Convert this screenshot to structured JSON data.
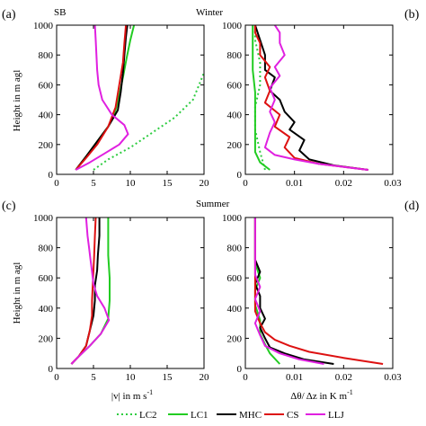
{
  "colors": {
    "LC2": "#2ecc40",
    "LC1": "#22cc22",
    "MHC": "#000000",
    "CS": "#dd1111",
    "LLJ": "#e020e0"
  },
  "labels": {
    "a": "(a)",
    "b": "(b)",
    "c": "(c)",
    "d": "(d)",
    "sb": "SB",
    "winter": "Winter",
    "summer": "Summer",
    "ylabel": "Height in m agl",
    "xlabel_left": "|v|  in  m s",
    "xlabel_left_sup": "-1",
    "xlabel_right": "Δθ/ Δz in K m",
    "xlabel_right_sup": "-1"
  },
  "legend": [
    {
      "name": "LC2",
      "dash": true
    },
    {
      "name": "LC1",
      "dash": false
    },
    {
      "name": "MHC",
      "dash": false
    },
    {
      "name": "CS",
      "dash": false
    },
    {
      "name": "LLJ",
      "dash": false
    }
  ],
  "chart_data": [
    {
      "panel": "a",
      "type": "line",
      "title": "Winter",
      "xlim": [
        0,
        20
      ],
      "ylim": [
        0,
        1000
      ],
      "xticks": [
        0,
        5,
        10,
        15,
        20
      ],
      "yticks": [
        0,
        200,
        400,
        600,
        800,
        1000
      ],
      "ylabel": "Height in m agl",
      "series": [
        {
          "name": "LC2",
          "dash": true,
          "points": [
            [
              5,
              30
            ],
            [
              7,
              100
            ],
            [
              10,
              180
            ],
            [
              13,
              280
            ],
            [
              16,
              380
            ],
            [
              18.5,
              500
            ],
            [
              20,
              680
            ]
          ]
        },
        {
          "name": "LC1",
          "points": [
            [
              2.6,
              30
            ],
            [
              4,
              120
            ],
            [
              5.5,
              220
            ],
            [
              7,
              320
            ],
            [
              8,
              430
            ],
            [
              8.5,
              530
            ],
            [
              9,
              650
            ],
            [
              9.5,
              780
            ],
            [
              10,
              900
            ],
            [
              10.5,
              1000
            ]
          ]
        },
        {
          "name": "MHC",
          "points": [
            [
              2.6,
              30
            ],
            [
              4,
              120
            ],
            [
              5.5,
              220
            ],
            [
              7,
              320
            ],
            [
              8.3,
              430
            ],
            [
              8.7,
              550
            ],
            [
              9,
              680
            ],
            [
              9.2,
              800
            ],
            [
              9.4,
              920
            ],
            [
              9.6,
              1000
            ]
          ]
        },
        {
          "name": "CS",
          "points": [
            [
              2.6,
              30
            ],
            [
              4,
              110
            ],
            [
              5.5,
              200
            ],
            [
              7,
              320
            ],
            [
              8,
              450
            ],
            [
              8.5,
              600
            ],
            [
              9,
              750
            ],
            [
              9.2,
              880
            ],
            [
              9.4,
              1000
            ]
          ]
        },
        {
          "name": "LLJ",
          "points": [
            [
              2.6,
              30
            ],
            [
              4.5,
              80
            ],
            [
              6.5,
              140
            ],
            [
              8.5,
              200
            ],
            [
              9.7,
              270
            ],
            [
              9.2,
              330
            ],
            [
              7.5,
              400
            ],
            [
              6.2,
              500
            ],
            [
              5.7,
              600
            ],
            [
              5.5,
              700
            ],
            [
              5.4,
              800
            ],
            [
              5.3,
              900
            ],
            [
              5.2,
              1000
            ]
          ]
        }
      ]
    },
    {
      "panel": "b",
      "type": "line",
      "xlim": [
        0,
        0.03
      ],
      "ylim": [
        0,
        1000
      ],
      "xticks": [
        0,
        0.01,
        0.02,
        0.03
      ],
      "yticks": [
        0,
        200,
        400,
        600,
        800,
        1000
      ],
      "series": [
        {
          "name": "LC2",
          "dash": true,
          "points": [
            [
              0.004,
              30
            ],
            [
              0.003,
              150
            ],
            [
              0.002,
              300
            ],
            [
              0.002,
              450
            ],
            [
              0.003,
              600
            ],
            [
              0.003,
              750
            ],
            [
              0.002,
              900
            ],
            [
              0.002,
              1000
            ]
          ]
        },
        {
          "name": "LC1",
          "points": [
            [
              0.005,
              30
            ],
            [
              0.003,
              80
            ],
            [
              0.002,
              150
            ],
            [
              0.002,
              250
            ],
            [
              0.002,
              400
            ],
            [
              0.002,
              550
            ],
            [
              0.0015,
              700
            ],
            [
              0.0015,
              850
            ],
            [
              0.0015,
              1000
            ]
          ]
        },
        {
          "name": "MHC",
          "points": [
            [
              0.025,
              30
            ],
            [
              0.018,
              60
            ],
            [
              0.013,
              100
            ],
            [
              0.011,
              160
            ],
            [
              0.012,
              230
            ],
            [
              0.009,
              300
            ],
            [
              0.01,
              350
            ],
            [
              0.008,
              420
            ],
            [
              0.007,
              500
            ],
            [
              0.005,
              560
            ],
            [
              0.006,
              650
            ],
            [
              0.004,
              700
            ],
            [
              0.004,
              800
            ],
            [
              0.003,
              900
            ],
            [
              0.002,
              1000
            ]
          ]
        },
        {
          "name": "CS",
          "points": [
            [
              0.025,
              30
            ],
            [
              0.015,
              70
            ],
            [
              0.01,
              110
            ],
            [
              0.008,
              180
            ],
            [
              0.009,
              250
            ],
            [
              0.006,
              320
            ],
            [
              0.007,
              400
            ],
            [
              0.004,
              480
            ],
            [
              0.005,
              560
            ],
            [
              0.004,
              650
            ],
            [
              0.005,
              720
            ],
            [
              0.003,
              800
            ],
            [
              0.003,
              880
            ],
            [
              0.002,
              950
            ],
            [
              0.002,
              1000
            ]
          ]
        },
        {
          "name": "LLJ",
          "points": [
            [
              0.025,
              30
            ],
            [
              0.02,
              50
            ],
            [
              0.015,
              70
            ],
            [
              0.01,
              100
            ],
            [
              0.006,
              130
            ],
            [
              0.004,
              180
            ],
            [
              0.005,
              280
            ],
            [
              0.006,
              350
            ],
            [
              0.005,
              420
            ],
            [
              0.006,
              500
            ],
            [
              0.005,
              580
            ],
            [
              0.007,
              660
            ],
            [
              0.006,
              720
            ],
            [
              0.008,
              800
            ],
            [
              0.007,
              880
            ],
            [
              0.007,
              950
            ],
            [
              0.006,
              1000
            ]
          ]
        }
      ]
    },
    {
      "panel": "c",
      "type": "line",
      "title": "Summer",
      "xlim": [
        0,
        20
      ],
      "ylim": [
        0,
        1000
      ],
      "xticks": [
        0,
        5,
        10,
        15,
        20
      ],
      "yticks": [
        0,
        200,
        400,
        600,
        800,
        1000
      ],
      "ylabel": "Height in m agl",
      "series": [
        {
          "name": "LC1",
          "points": [
            [
              2,
              30
            ],
            [
              3,
              80
            ],
            [
              4.5,
              150
            ],
            [
              6,
              230
            ],
            [
              7,
              330
            ],
            [
              7.2,
              450
            ],
            [
              7.2,
              600
            ],
            [
              7,
              750
            ],
            [
              7,
              880
            ],
            [
              7,
              1000
            ]
          ]
        },
        {
          "name": "MHC",
          "points": [
            [
              2,
              30
            ],
            [
              3,
              80
            ],
            [
              4,
              150
            ],
            [
              4.5,
              250
            ],
            [
              5,
              350
            ],
            [
              5.2,
              450
            ],
            [
              5.2,
              550
            ],
            [
              5.5,
              650
            ],
            [
              5.6,
              750
            ],
            [
              5.8,
              880
            ],
            [
              5.8,
              1000
            ]
          ]
        },
        {
          "name": "CS",
          "points": [
            [
              2,
              30
            ],
            [
              3,
              80
            ],
            [
              4,
              150
            ],
            [
              4.5,
              250
            ],
            [
              4.8,
              350
            ],
            [
              4.8,
              450
            ],
            [
              4.9,
              550
            ],
            [
              5,
              650
            ],
            [
              5.1,
              750
            ],
            [
              5.2,
              880
            ],
            [
              5.3,
              1000
            ]
          ]
        },
        {
          "name": "LLJ",
          "points": [
            [
              2,
              30
            ],
            [
              3,
              80
            ],
            [
              4.5,
              150
            ],
            [
              6,
              230
            ],
            [
              7.1,
              320
            ],
            [
              6.5,
              400
            ],
            [
              5.5,
              480
            ],
            [
              5.0,
              560
            ],
            [
              4.8,
              640
            ],
            [
              4.6,
              720
            ],
            [
              4.4,
              800
            ],
            [
              4.2,
              880
            ],
            [
              4,
              1000
            ]
          ]
        }
      ]
    },
    {
      "panel": "d",
      "type": "line",
      "xlim": [
        0,
        0.03
      ],
      "ylim": [
        0,
        1000
      ],
      "xticks": [
        0,
        0.01,
        0.02,
        0.03
      ],
      "yticks": [
        0,
        200,
        400,
        600,
        800,
        1000
      ],
      "series": [
        {
          "name": "LC1",
          "points": [
            [
              0.007,
              30
            ],
            [
              0.005,
              100
            ],
            [
              0.004,
              160
            ],
            [
              0.003,
              230
            ],
            [
              0.003,
              320
            ],
            [
              0.002,
              420
            ],
            [
              0.002,
              520
            ],
            [
              0.003,
              600
            ],
            [
              0.002,
              700
            ],
            [
              0.002,
              800
            ],
            [
              0.002,
              900
            ],
            [
              0.002,
              1000
            ]
          ]
        },
        {
          "name": "MHC",
          "points": [
            [
              0.018,
              30
            ],
            [
              0.012,
              60
            ],
            [
              0.008,
              100
            ],
            [
              0.005,
              140
            ],
            [
              0.004,
              200
            ],
            [
              0.003,
              270
            ],
            [
              0.004,
              330
            ],
            [
              0.003,
              400
            ],
            [
              0.003,
              480
            ],
            [
              0.002,
              560
            ],
            [
              0.003,
              640
            ],
            [
              0.002,
              720
            ],
            [
              0.002,
              800
            ],
            [
              0.002,
              880
            ],
            [
              0.002,
              950
            ],
            [
              0.002,
              1000
            ]
          ]
        },
        {
          "name": "CS",
          "points": [
            [
              0.028,
              30
            ],
            [
              0.02,
              70
            ],
            [
              0.013,
              110
            ],
            [
              0.009,
              150
            ],
            [
              0.006,
              190
            ],
            [
              0.004,
              240
            ],
            [
              0.003,
              300
            ],
            [
              0.002,
              380
            ],
            [
              0.002,
              460
            ],
            [
              0.002,
              540
            ],
            [
              0.002,
              620
            ],
            [
              0.002,
              700
            ],
            [
              0.002,
              780
            ],
            [
              0.002,
              860
            ],
            [
              0.002,
              940
            ],
            [
              0.002,
              1000
            ]
          ]
        },
        {
          "name": "LLJ",
          "points": [
            [
              0.016,
              30
            ],
            [
              0.011,
              60
            ],
            [
              0.007,
              100
            ],
            [
              0.004,
              150
            ],
            [
              0.003,
              220
            ],
            [
              0.002,
              300
            ],
            [
              0.003,
              380
            ],
            [
              0.002,
              460
            ],
            [
              0.003,
              540
            ],
            [
              0.002,
              620
            ],
            [
              0.002,
              700
            ],
            [
              0.002,
              780
            ],
            [
              0.002,
              860
            ],
            [
              0.002,
              940
            ],
            [
              0.002,
              1000
            ]
          ]
        }
      ]
    }
  ]
}
